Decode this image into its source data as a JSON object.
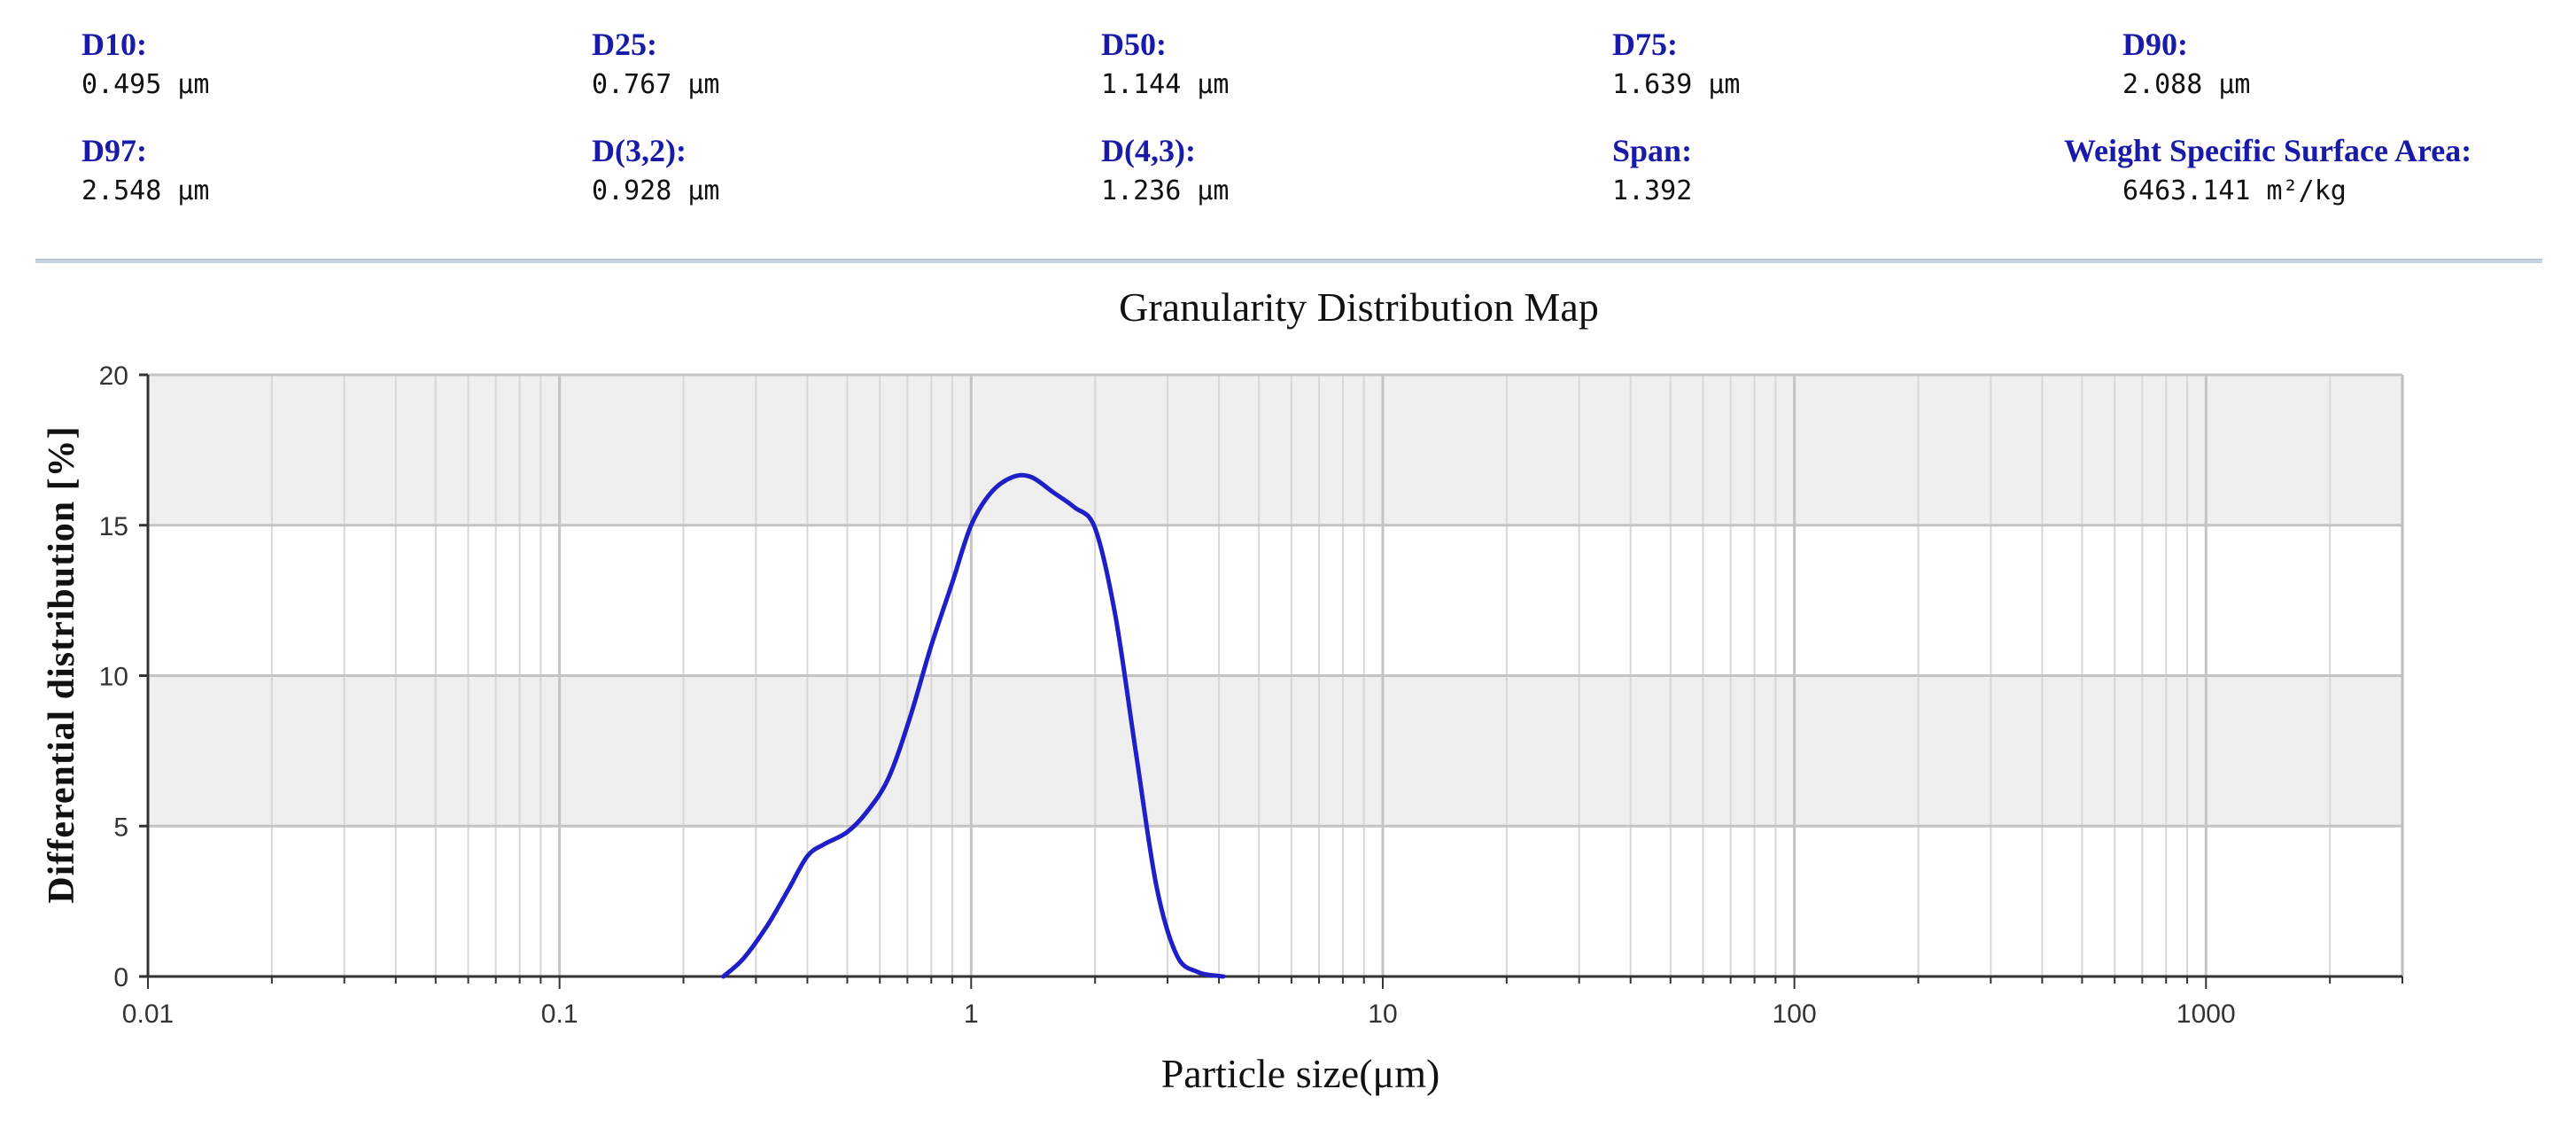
{
  "stats": [
    {
      "label": "D10:",
      "value": "0.495 μm"
    },
    {
      "label": "D25:",
      "value": "0.767 μm"
    },
    {
      "label": "D50:",
      "value": "1.144 μm"
    },
    {
      "label": "D75:",
      "value": "1.639 μm"
    },
    {
      "label": "D90:",
      "value": "2.088 μm"
    },
    {
      "label": "D97:",
      "value": "2.548 μm"
    },
    {
      "label": "D(3,2):",
      "value": "0.928 μm"
    },
    {
      "label": "D(4,3):",
      "value": "1.236 μm"
    },
    {
      "label": "Span:",
      "value": "1.392"
    },
    {
      "label": "Weight Specific Surface Area:",
      "value": "6463.141 m²/kg"
    }
  ],
  "colors": {
    "label": "#1a1aa8",
    "series": "#1f1fc8",
    "band": "#efefef",
    "grid_major": "#c4c4c4",
    "grid_minor": "#d8d8d8"
  },
  "chart_data": {
    "type": "line",
    "title": "Granularity Distribution Map",
    "xlabel": "Particle size(μm)",
    "ylabel": "Differential distribution [%]",
    "x_scale": "log",
    "xlim": [
      0.01,
      3000
    ],
    "ylim": [
      0,
      20
    ],
    "x_ticks": [
      {
        "value": 0.01,
        "label": "0.01"
      },
      {
        "value": 0.1,
        "label": "0.1"
      },
      {
        "value": 1,
        "label": "1"
      },
      {
        "value": 10,
        "label": "10"
      },
      {
        "value": 100,
        "label": "100"
      },
      {
        "value": 1000,
        "label": "1000"
      }
    ],
    "y_ticks": [
      {
        "value": 0,
        "label": "0"
      },
      {
        "value": 5,
        "label": "5"
      },
      {
        "value": 10,
        "label": "10"
      },
      {
        "value": 15,
        "label": "15"
      },
      {
        "value": 20,
        "label": "20"
      }
    ],
    "grid": true,
    "legend": "none",
    "series": [
      {
        "x": [
          0.25,
          0.28,
          0.32,
          0.36,
          0.4,
          0.44,
          0.5,
          0.56,
          0.63,
          0.71,
          0.8,
          0.9,
          1.0,
          1.12,
          1.26,
          1.4,
          1.58,
          1.78,
          2.0,
          2.24,
          2.51,
          2.82,
          3.16,
          3.55,
          3.98,
          4.1
        ],
        "y": [
          0.0,
          0.6,
          1.7,
          2.9,
          4.0,
          4.4,
          4.8,
          5.5,
          6.6,
          8.6,
          11.0,
          13.1,
          15.0,
          16.1,
          16.6,
          16.6,
          16.1,
          15.6,
          14.9,
          12.0,
          7.5,
          3.0,
          0.7,
          0.15,
          0.02,
          0.0
        ]
      }
    ]
  }
}
